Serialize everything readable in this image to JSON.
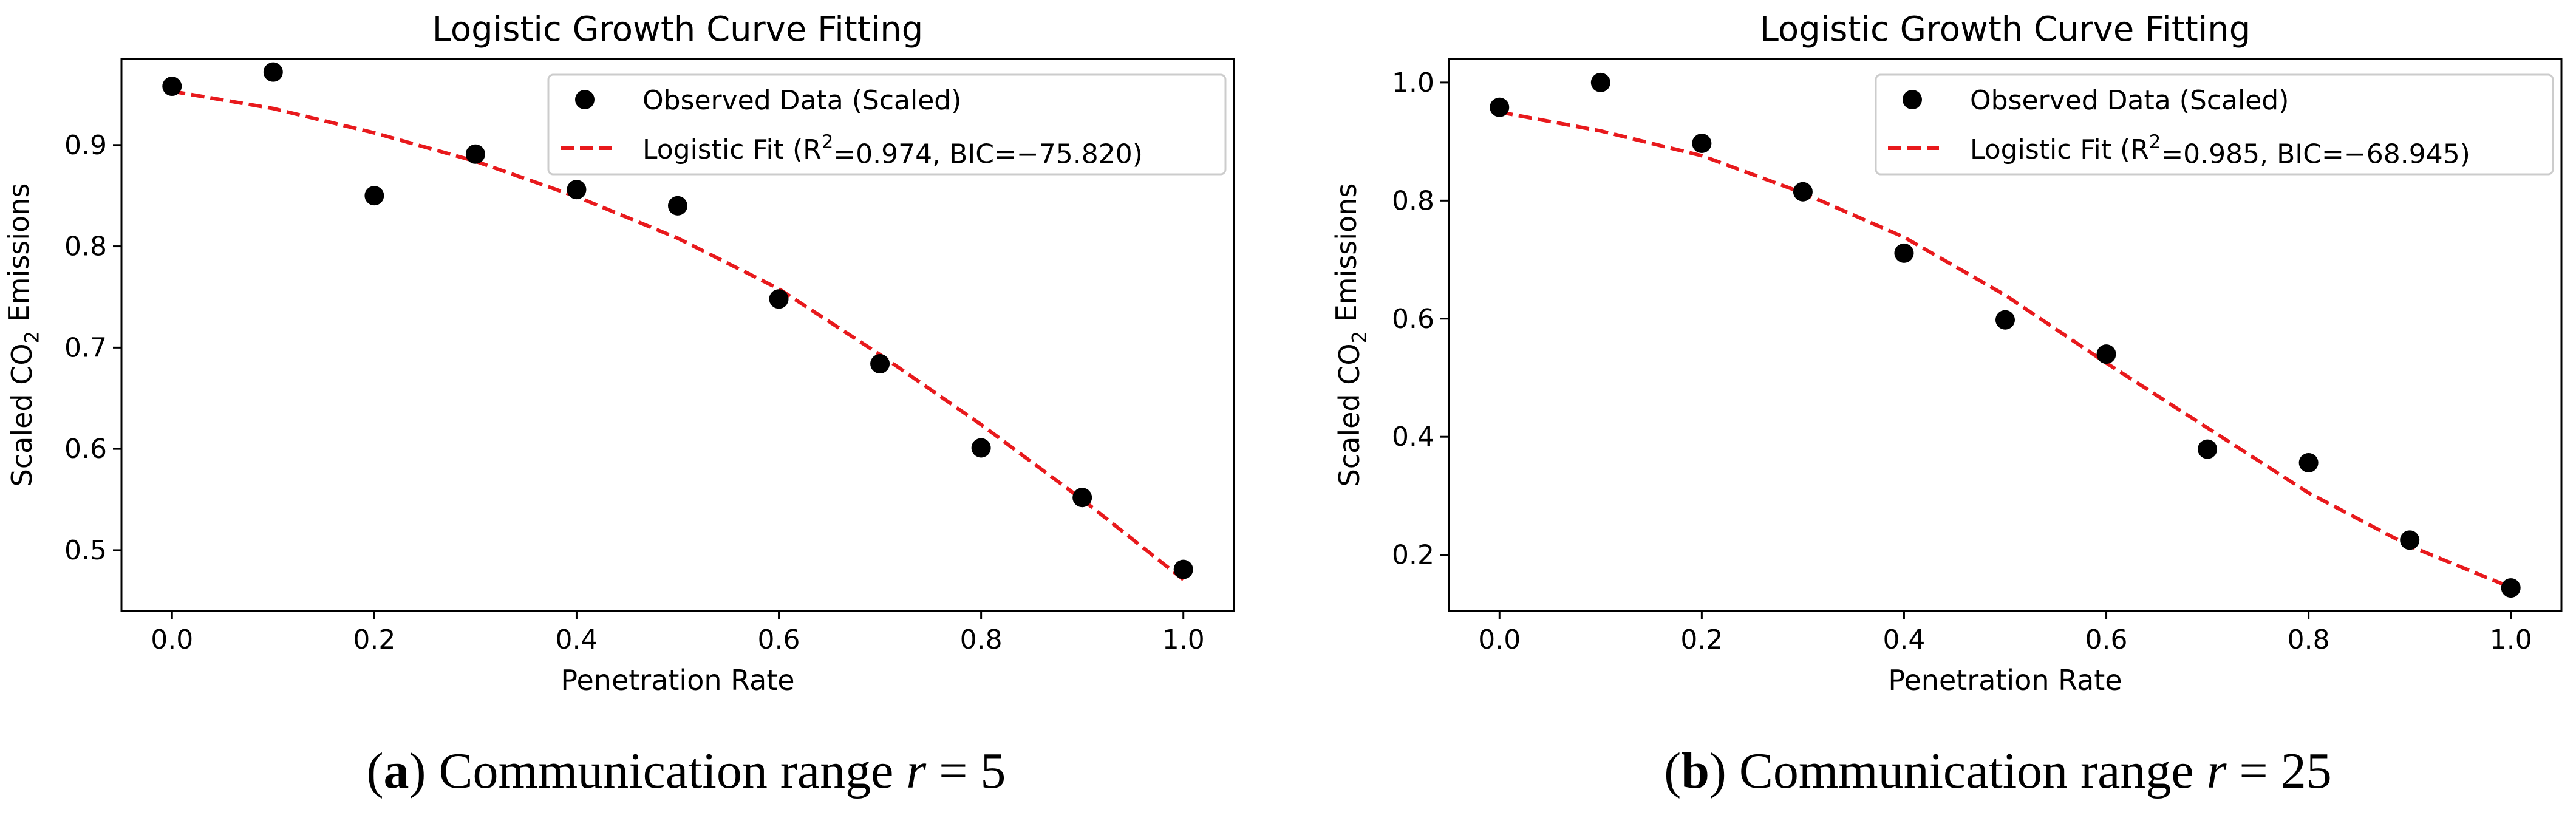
{
  "chart_data": [
    {
      "type": "scatter",
      "title": "Logistic Growth Curve Fitting",
      "xlabel": "Penetration Rate",
      "ylabel_parts": [
        "Scaled CO",
        "2",
        " Emissions"
      ],
      "xlim": [
        -0.05,
        1.05
      ],
      "ylim": [
        0.44,
        0.985
      ],
      "xticks": [
        0.0,
        0.2,
        0.4,
        0.6,
        0.8,
        1.0
      ],
      "xtick_labels": [
        "0.0",
        "0.2",
        "0.4",
        "0.6",
        "0.8",
        "1.0"
      ],
      "yticks": [
        0.5,
        0.6,
        0.7,
        0.8,
        0.9
      ],
      "ytick_labels": [
        "0.5",
        "0.6",
        "0.7",
        "0.8",
        "0.9"
      ],
      "series": [
        {
          "name": "Observed Data (Scaled)",
          "kind": "scatter",
          "color": "#000000",
          "x": [
            0.0,
            0.1,
            0.2,
            0.3,
            0.4,
            0.5,
            0.6,
            0.7,
            0.8,
            0.9,
            1.0
          ],
          "y": [
            0.958,
            0.972,
            0.85,
            0.891,
            0.856,
            0.84,
            0.748,
            0.684,
            0.601,
            0.552,
            0.481
          ]
        },
        {
          "name": "Logistic Fit",
          "kind": "line",
          "style": "dashed",
          "color": "#e8191c",
          "legend_parts": [
            "Logistic Fit (R",
            "2",
            "=0.974, BIC=−75.820)"
          ],
          "x": [
            0.0,
            0.1,
            0.2,
            0.3,
            0.4,
            0.5,
            0.6,
            0.7,
            0.8,
            0.9,
            1.0
          ],
          "y": [
            0.953,
            0.936,
            0.912,
            0.884,
            0.849,
            0.808,
            0.758,
            0.693,
            0.624,
            0.55,
            0.471
          ]
        }
      ],
      "legend_position": "upper-right",
      "grid": false,
      "caption": {
        "letter": "a",
        "text": "Communication range",
        "var": "r",
        "eq": "= 5"
      }
    },
    {
      "type": "scatter",
      "title": "Logistic Growth Curve Fitting",
      "xlabel": "Penetration Rate",
      "ylabel_parts": [
        "Scaled CO",
        "2",
        " Emissions"
      ],
      "xlim": [
        -0.05,
        1.05
      ],
      "ylim": [
        0.105,
        1.04
      ],
      "xticks": [
        0.0,
        0.2,
        0.4,
        0.6,
        0.8,
        1.0
      ],
      "xtick_labels": [
        "0.0",
        "0.2",
        "0.4",
        "0.6",
        "0.8",
        "1.0"
      ],
      "yticks": [
        0.2,
        0.4,
        0.6,
        0.8,
        1.0
      ],
      "ytick_labels": [
        "0.2",
        "0.4",
        "0.6",
        "0.8",
        "1.0"
      ],
      "series": [
        {
          "name": "Observed Data (Scaled)",
          "kind": "scatter",
          "color": "#000000",
          "x": [
            0.0,
            0.1,
            0.2,
            0.3,
            0.4,
            0.5,
            0.6,
            0.7,
            0.8,
            0.9,
            1.0
          ],
          "y": [
            0.958,
            1.0,
            0.897,
            0.815,
            0.711,
            0.598,
            0.54,
            0.379,
            0.356,
            0.225,
            0.144
          ]
        },
        {
          "name": "Logistic Fit",
          "kind": "line",
          "style": "dashed",
          "color": "#e8191c",
          "legend_parts": [
            "Logistic Fit (R",
            "2",
            "=0.985, BIC=−68.945)"
          ],
          "x": [
            0.0,
            0.1,
            0.2,
            0.3,
            0.4,
            0.5,
            0.6,
            0.7,
            0.8,
            0.9,
            1.0
          ],
          "y": [
            0.95,
            0.918,
            0.876,
            0.813,
            0.738,
            0.64,
            0.525,
            0.415,
            0.305,
            0.215,
            0.145
          ]
        }
      ],
      "legend_position": "upper-right",
      "grid": false,
      "caption": {
        "letter": "b",
        "text": "Communication range",
        "var": "r",
        "eq": "= 25"
      }
    }
  ]
}
